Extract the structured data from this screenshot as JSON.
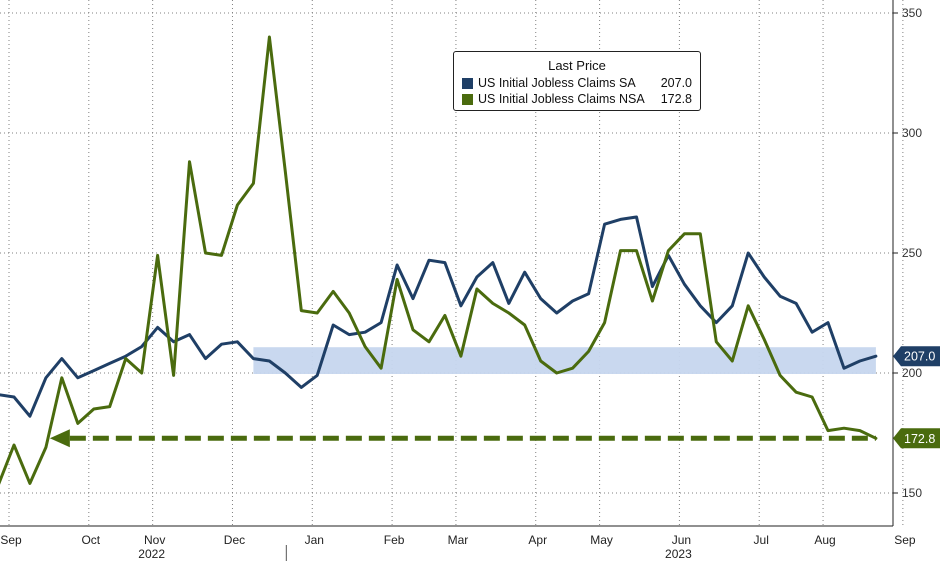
{
  "colors": {
    "sa": "#1f3f66",
    "nsa": "#4a6b0e",
    "band": "#c6d6ee",
    "grid": "#808080",
    "axis": "#222222"
  },
  "legend": {
    "title": "Last Price",
    "items": [
      {
        "name": "US Initial Jobless Claims SA",
        "value": "207.0",
        "color": "#1f3f66"
      },
      {
        "name": "US Initial Jobless Claims NSA",
        "value": "172.8",
        "color": "#4a6b0e"
      }
    ]
  },
  "chart_data": {
    "type": "line",
    "title": "",
    "xlabel": "",
    "ylabel": "",
    "ylim": [
      135,
      355
    ],
    "y_ticks": [
      150,
      200,
      250,
      300,
      350
    ],
    "y_axis_position": "right",
    "grid": true,
    "legend_position": "top-center",
    "x_labels": [
      {
        "label": "Sep",
        "week": 0
      },
      {
        "label": "Oct",
        "week": 5
      },
      {
        "label": "Nov",
        "week": 9
      },
      {
        "label": "Dec",
        "week": 14
      },
      {
        "label": "Jan",
        "week": 19
      },
      {
        "label": "Feb",
        "week": 24
      },
      {
        "label": "Mar",
        "week": 28
      },
      {
        "label": "Apr",
        "week": 33
      },
      {
        "label": "May",
        "week": 37
      },
      {
        "label": "Jun",
        "week": 42
      },
      {
        "label": "Jul",
        "week": 47
      },
      {
        "label": "Aug",
        "week": 51
      },
      {
        "label": "Sep",
        "week": 56
      }
    ],
    "year_labels": [
      {
        "label": "2022",
        "week": 9
      },
      {
        "label": "2023",
        "week": 42
      }
    ],
    "year_divider_week": 18,
    "series": [
      {
        "name": "US Initial Jobless Claims SA",
        "color": "#1f3f66",
        "values": [
          191,
          190,
          182,
          198,
          206,
          198,
          201,
          204,
          207,
          211,
          219,
          213,
          216,
          206,
          212,
          213,
          206,
          205,
          200,
          194,
          199,
          220,
          216,
          217,
          221,
          245,
          231,
          247,
          246,
          228,
          240,
          246,
          229,
          242,
          231,
          225,
          230,
          233,
          262,
          264,
          265,
          236,
          249,
          237,
          228,
          221,
          228,
          250,
          240,
          232,
          229,
          217,
          221,
          202,
          205,
          207
        ]
      },
      {
        "name": "US Initial Jobless Claims NSA",
        "color": "#4a6b0e",
        "values": [
          153,
          170,
          154,
          169,
          198,
          179,
          185,
          186,
          206,
          200,
          249,
          199,
          288,
          250,
          249,
          270,
          279,
          340,
          284,
          226,
          225,
          234,
          225,
          211,
          202,
          239,
          218,
          213,
          224,
          207,
          235,
          229,
          225,
          220,
          205,
          200,
          202,
          209,
          221,
          251,
          251,
          230,
          251,
          258,
          258,
          213,
          205,
          228,
          214,
          199,
          192,
          190,
          176,
          177,
          176,
          172.8
        ]
      }
    ],
    "annotations": [
      {
        "type": "band",
        "y_from": 200,
        "y_to": 207,
        "label": "207.0"
      },
      {
        "type": "dashed-arrow",
        "y": 172.8,
        "label": "172.8"
      }
    ]
  }
}
